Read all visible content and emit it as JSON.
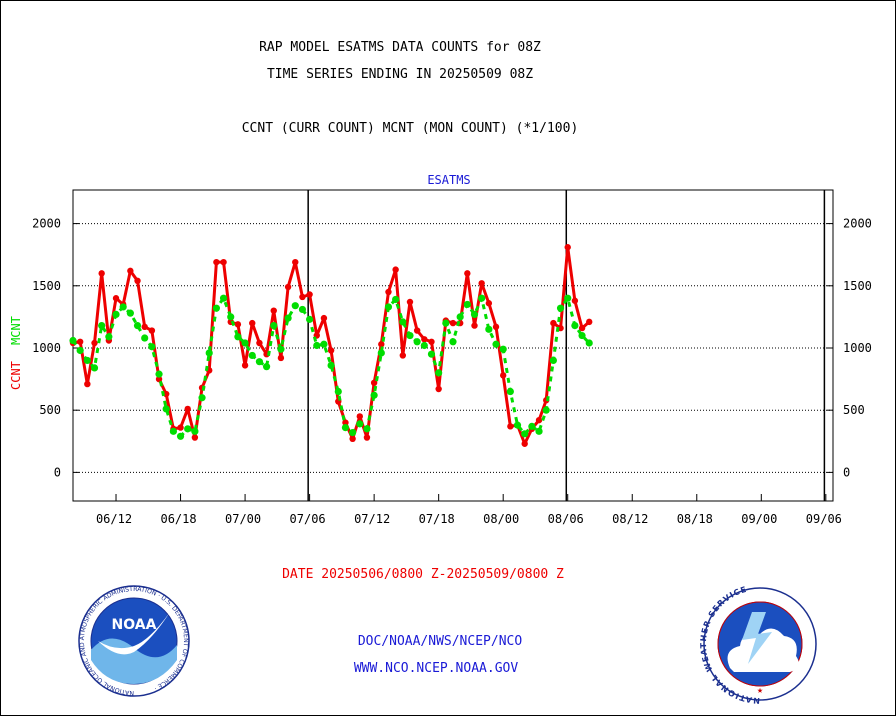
{
  "header": {
    "title_line1": "RAP MODEL ESATMS DATA COUNTS for 08Z",
    "title_line2": "TIME SERIES ENDING IN 20250509 08Z",
    "subtitle": "CCNT (CURR COUNT) MCNT (MON COUNT) (*1/100)"
  },
  "footer": {
    "date_range": "DATE 20250506/0800 Z-20250509/0800 Z",
    "org": "DOC/NOAA/NWS/NCEP/NCO",
    "url": "WWW.NCO.NCEP.NOAA.GOV"
  },
  "logos": {
    "noaa": {
      "label": "NOAA",
      "ring_text": "NATIONAL OCEANIC AND ATMOSPHERIC ADMINISTRATION · U.S. DEPARTMENT OF COMMERCE ·"
    },
    "nws": {
      "ring_text": "NATIONAL WEATHER SERVICE"
    }
  },
  "colors": {
    "ccnt": "#ee0000",
    "mcnt": "#00dd00",
    "panel_title": "#1a1ad6"
  },
  "chart_data": {
    "type": "line",
    "panel_title": "ESATMS",
    "ylabel_left": [
      "CCNT",
      "MCNT"
    ],
    "yticks": [
      0,
      500,
      1000,
      1500,
      2000
    ],
    "ylim": [
      -230,
      2270
    ],
    "xlim": [
      0,
      106
    ],
    "grid": "horizontal dotted",
    "x_tick_labels": [
      {
        "x": 6,
        "label": "06/12"
      },
      {
        "x": 15,
        "label": "06/18"
      },
      {
        "x": 24,
        "label": "07/00"
      },
      {
        "x": 33,
        "label": "07/06"
      },
      {
        "x": 42,
        "label": "07/12"
      },
      {
        "x": 51,
        "label": "07/18"
      },
      {
        "x": 60,
        "label": "08/00"
      },
      {
        "x": 69,
        "label": "08/06"
      },
      {
        "x": 78,
        "label": "08/12"
      },
      {
        "x": 87,
        "label": "08/18"
      },
      {
        "x": 96,
        "label": "09/00"
      },
      {
        "x": 105,
        "label": "09/06"
      }
    ],
    "day_dividers": [
      32.8,
      68.8,
      104.8
    ],
    "series": [
      {
        "name": "CCNT",
        "color": "#ee0000",
        "values": [
          1040,
          1050,
          710,
          1040,
          1600,
          1060,
          1400,
          1350,
          1620,
          1540,
          1170,
          1140,
          750,
          630,
          350,
          360,
          510,
          280,
          680,
          820,
          1690,
          1690,
          1210,
          1190,
          860,
          1200,
          1040,
          950,
          1300,
          920,
          1490,
          1690,
          1410,
          1430,
          1100,
          1240,
          980,
          570,
          400,
          270,
          450,
          280,
          720,
          1030,
          1450,
          1630,
          940,
          1370,
          1140,
          1070,
          1050,
          670,
          1220,
          1200,
          1200,
          1600,
          1180,
          1520,
          1360,
          1170,
          780,
          370,
          380,
          230,
          350,
          420,
          580,
          1200,
          1160,
          1810,
          1380,
          1160,
          1210
        ]
      },
      {
        "name": "MCNT",
        "color": "#00dd00",
        "values": [
          1060,
          980,
          900,
          840,
          1180,
          1090,
          1270,
          1330,
          1280,
          1180,
          1080,
          1010,
          790,
          510,
          330,
          290,
          350,
          330,
          600,
          960,
          1320,
          1400,
          1250,
          1090,
          1040,
          940,
          890,
          850,
          1180,
          990,
          1240,
          1340,
          1310,
          1230,
          1020,
          1030,
          860,
          650,
          360,
          320,
          390,
          350,
          620,
          960,
          1330,
          1390,
          1210,
          1100,
          1050,
          1020,
          950,
          800,
          1200,
          1050,
          1250,
          1350,
          1270,
          1400,
          1150,
          1030,
          990,
          650,
          380,
          310,
          370,
          330,
          500,
          900,
          1320,
          1400,
          1180,
          1100,
          1040
        ]
      }
    ]
  }
}
